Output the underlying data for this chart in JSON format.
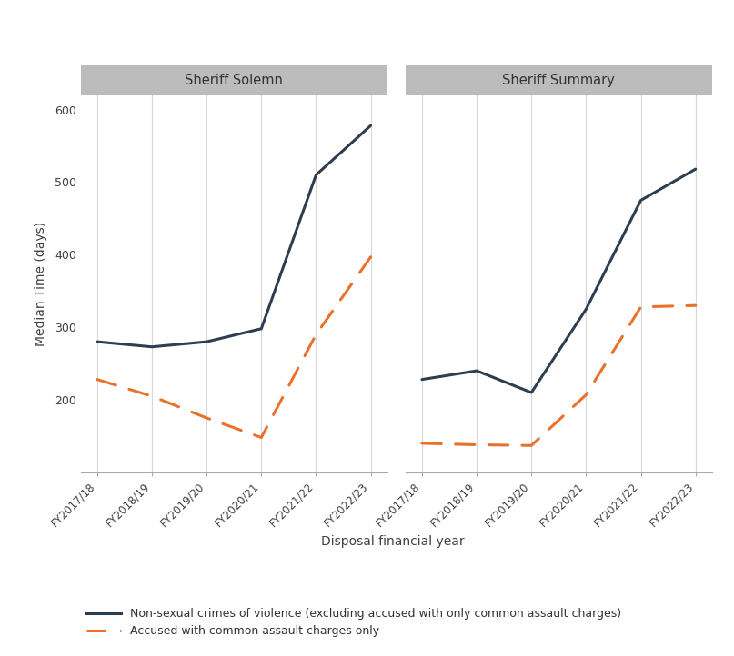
{
  "years": [
    "FY2017/18",
    "FY2018/19",
    "FY2019/20",
    "FY2020/21",
    "FY2021/22",
    "FY2022/23"
  ],
  "solemn_nonsexual": [
    280,
    273,
    280,
    298,
    510,
    578
  ],
  "solemn_assault": [
    228,
    205,
    175,
    148,
    290,
    397
  ],
  "summary_nonsexual": [
    228,
    240,
    210,
    325,
    475,
    518
  ],
  "summary_assault": [
    140,
    138,
    137,
    207,
    328,
    330
  ],
  "panel_titles": [
    "Sheriff Solemn",
    "Sheriff Summary"
  ],
  "ylabel": "Median Time (days)",
  "xlabel": "Disposal financial year",
  "color_nonsexual": "#2d3e50",
  "color_assault": "#e8722a",
  "ylim": [
    100,
    620
  ],
  "yticks": [
    200,
    300,
    400,
    500,
    600
  ],
  "legend_nonsexual": "Non-sexual crimes of violence (excluding accused with only common assault charges)",
  "legend_assault": "Accused with common assault charges only",
  "background_color": "#ffffff",
  "panel_title_bg": "#bcbcbc",
  "grid_color": "#d8d8d8",
  "line_width": 2.2
}
